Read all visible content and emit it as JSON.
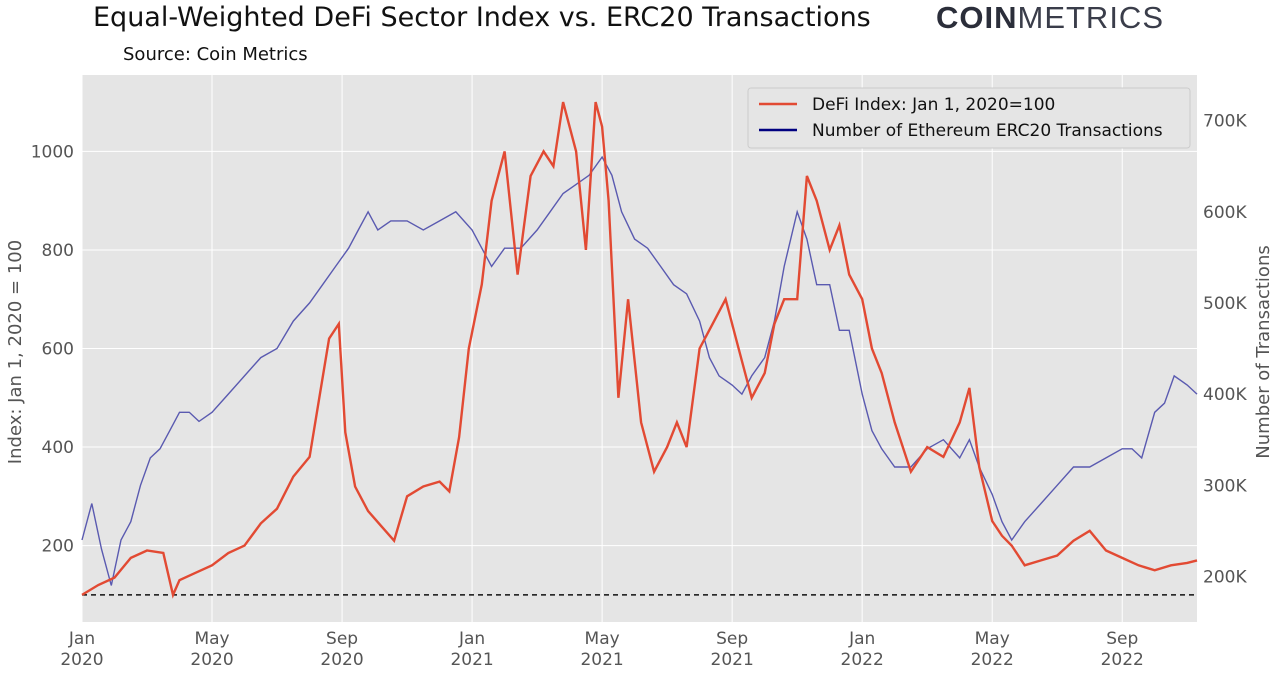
{
  "title": "Equal-Weighted DeFi Sector Index vs. ERC20 Transactions",
  "subtitle": "Source: Coin Metrics",
  "logo": {
    "bold": "COIN",
    "light": "METRICS"
  },
  "colors": {
    "defi": "#e24a33",
    "erc20": "#000080",
    "erc20_line": "#5a5ab0",
    "plot_bg": "#e5e5e5",
    "grid": "#ffffff",
    "baseline": "#111111"
  },
  "chart_data": {
    "type": "line",
    "title": "Equal-Weighted DeFi Sector Index vs. ERC20 Transactions",
    "ylabel_left": "Index: Jan 1, 2020 = 100",
    "ylabel_right": "Number of Transactions",
    "x_ticks": [
      {
        "top": "Jan",
        "bottom": "2020"
      },
      {
        "top": "May",
        "bottom": "2020"
      },
      {
        "top": "Sep",
        "bottom": "2020"
      },
      {
        "top": "Jan",
        "bottom": "2021"
      },
      {
        "top": "May",
        "bottom": "2021"
      },
      {
        "top": "Sep",
        "bottom": "2021"
      },
      {
        "top": "Jan",
        "bottom": "2022"
      },
      {
        "top": "May",
        "bottom": "2022"
      },
      {
        "top": "Sep",
        "bottom": "2022"
      }
    ],
    "x_tick_months": [
      0,
      4,
      8,
      12,
      16,
      20,
      24,
      28,
      32
    ],
    "xlim_months": [
      0,
      34.3
    ],
    "left_ticks": [
      200,
      400,
      600,
      800,
      1000
    ],
    "left_ylim": [
      45,
      1155
    ],
    "right_ticks": [
      {
        "value": 200000,
        "label": "200K"
      },
      {
        "value": 300000,
        "label": "300K"
      },
      {
        "value": 400000,
        "label": "400K"
      },
      {
        "value": 500000,
        "label": "500K"
      },
      {
        "value": 600000,
        "label": "600K"
      },
      {
        "value": 700000,
        "label": "700K"
      }
    ],
    "right_ylim": [
      150000,
      750000
    ],
    "baseline": 100,
    "legend_position": "top-right",
    "series": [
      {
        "name": "DeFi Index: Jan 1, 2020=100",
        "axis": "left",
        "x_months": [
          0,
          0.5,
          1,
          1.5,
          2,
          2.5,
          2.8,
          3,
          3.5,
          4,
          4.5,
          5,
          5.5,
          6,
          6.5,
          7,
          7.3,
          7.6,
          7.9,
          8.1,
          8.4,
          8.8,
          9.2,
          9.6,
          10,
          10.5,
          11,
          11.3,
          11.6,
          11.9,
          12.3,
          12.6,
          13,
          13.4,
          13.8,
          14.2,
          14.5,
          14.8,
          15.2,
          15.5,
          15.8,
          16,
          16.2,
          16.5,
          16.8,
          17.2,
          17.6,
          18,
          18.3,
          18.6,
          19,
          19.4,
          19.8,
          20.2,
          20.6,
          21,
          21.3,
          21.6,
          22,
          22.3,
          22.6,
          23,
          23.3,
          23.6,
          24,
          24.3,
          24.6,
          25,
          25.5,
          26,
          26.5,
          27,
          27.3,
          27.6,
          28,
          28.3,
          28.6,
          29,
          29.5,
          30,
          30.5,
          31,
          31.5,
          32,
          32.5,
          33,
          33.5,
          34,
          34.3
        ],
        "values": [
          100,
          120,
          135,
          175,
          190,
          185,
          100,
          130,
          145,
          160,
          185,
          200,
          245,
          275,
          340,
          380,
          500,
          620,
          650,
          430,
          320,
          270,
          240,
          210,
          300,
          320,
          330,
          310,
          420,
          600,
          730,
          900,
          1000,
          750,
          950,
          1000,
          970,
          1100,
          1000,
          800,
          1100,
          1050,
          900,
          500,
          700,
          450,
          350,
          400,
          450,
          400,
          600,
          650,
          700,
          600,
          500,
          550,
          650,
          700,
          700,
          950,
          900,
          800,
          850,
          750,
          700,
          600,
          550,
          450,
          350,
          400,
          380,
          450,
          520,
          360,
          250,
          220,
          200,
          160,
          170,
          180,
          210,
          230,
          190,
          175,
          160,
          150,
          160,
          165,
          170
        ]
      },
      {
        "name": "Number of Ethereum ERC20 Transactions",
        "axis": "right",
        "x_months": [
          0,
          0.3,
          0.6,
          0.9,
          1.2,
          1.5,
          1.8,
          2.1,
          2.4,
          2.7,
          3,
          3.3,
          3.6,
          4,
          4.5,
          5,
          5.5,
          6,
          6.5,
          7,
          7.4,
          7.8,
          8.2,
          8.5,
          8.8,
          9.1,
          9.5,
          10,
          10.5,
          11,
          11.5,
          12,
          12.3,
          12.6,
          13,
          13.5,
          14,
          14.4,
          14.8,
          15.2,
          15.6,
          16,
          16.3,
          16.6,
          17,
          17.4,
          17.8,
          18.2,
          18.6,
          19,
          19.3,
          19.6,
          20,
          20.3,
          20.6,
          21,
          21.3,
          21.6,
          22,
          22.3,
          22.6,
          23,
          23.3,
          23.6,
          24,
          24.3,
          24.6,
          25,
          25.5,
          26,
          26.5,
          27,
          27.3,
          27.6,
          28,
          28.3,
          28.6,
          29,
          29.5,
          30,
          30.5,
          31,
          31.5,
          32,
          32.3,
          32.6,
          33,
          33.3,
          33.6,
          34,
          34.3
        ],
        "values": [
          240,
          280,
          230,
          190,
          240,
          260,
          300,
          330,
          340,
          360,
          380,
          380,
          370,
          380,
          400,
          420,
          440,
          450,
          480,
          500,
          520,
          540,
          560,
          580,
          600,
          580,
          590,
          590,
          580,
          590,
          600,
          580,
          560,
          540,
          560,
          560,
          580,
          600,
          620,
          630,
          640,
          660,
          640,
          600,
          570,
          560,
          540,
          520,
          510,
          480,
          440,
          420,
          410,
          400,
          420,
          440,
          480,
          540,
          600,
          570,
          520,
          520,
          470,
          470,
          400,
          360,
          340,
          320,
          320,
          340,
          350,
          330,
          350,
          320,
          290,
          260,
          240,
          260,
          280,
          300,
          320,
          320,
          330,
          340,
          340,
          330,
          380,
          390,
          420,
          410,
          400
        ]
      }
    ]
  }
}
